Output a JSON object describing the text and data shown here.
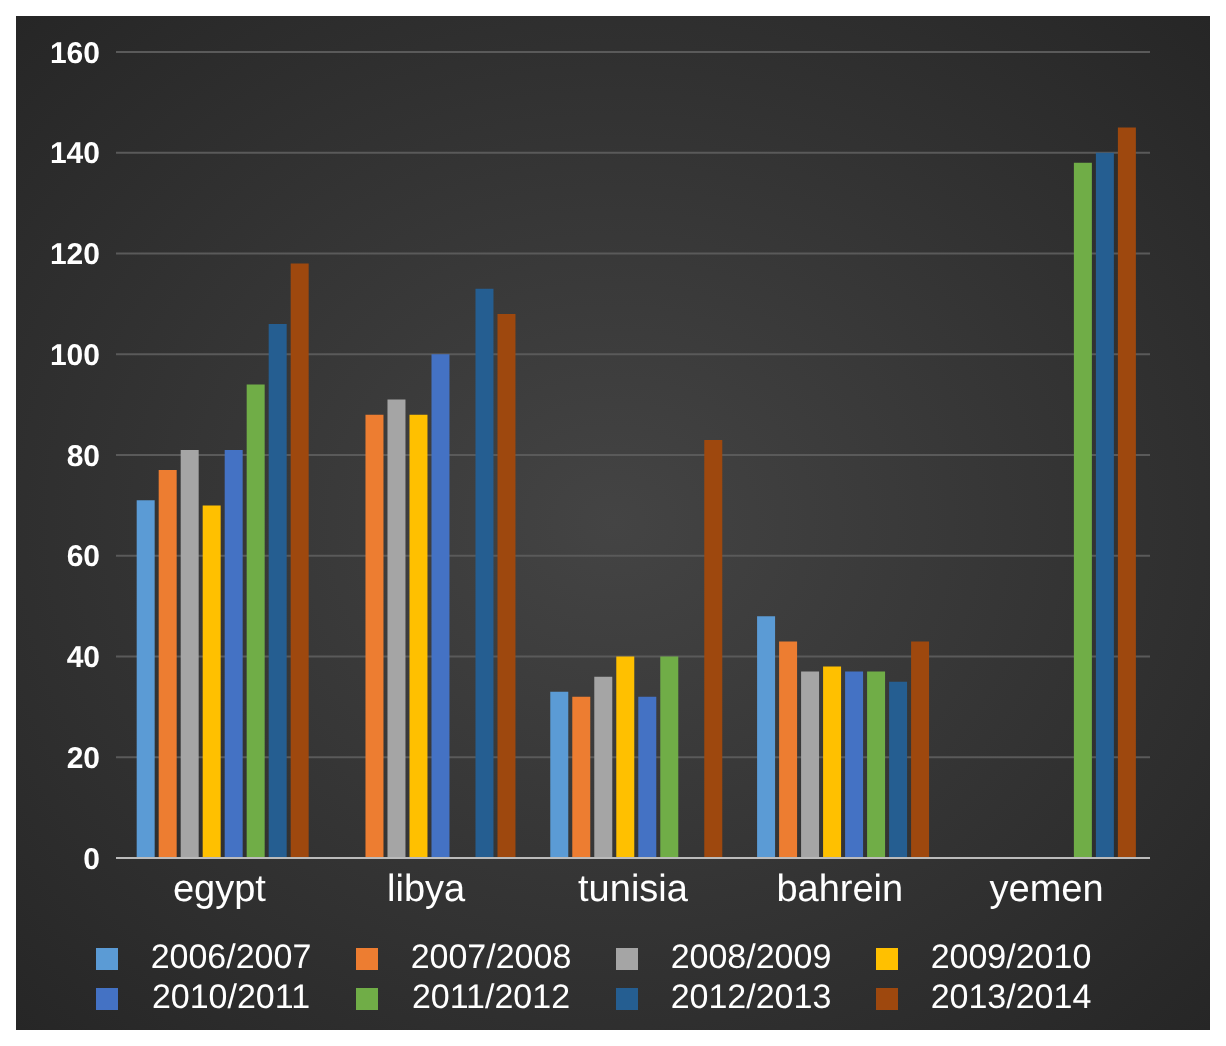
{
  "chart_data": {
    "type": "bar",
    "categories": [
      "egypt",
      "libya",
      "tunisia",
      "bahrein",
      "yemen"
    ],
    "series": [
      {
        "name": "2006/2007",
        "color": "#5b9bd5",
        "values": [
          71,
          null,
          33,
          48,
          null
        ]
      },
      {
        "name": "2007/2008",
        "color": "#ed7d31",
        "values": [
          77,
          88,
          32,
          43,
          null
        ]
      },
      {
        "name": "2008/2009",
        "color": "#a5a5a5",
        "values": [
          81,
          91,
          36,
          37,
          null
        ]
      },
      {
        "name": "2009/2010",
        "color": "#ffc000",
        "values": [
          70,
          88,
          40,
          38,
          null
        ]
      },
      {
        "name": "2010/2011",
        "color": "#4472c4",
        "values": [
          81,
          100,
          32,
          37,
          null
        ]
      },
      {
        "name": "2011/2012",
        "color": "#70ad47",
        "values": [
          94,
          null,
          40,
          37,
          138
        ]
      },
      {
        "name": "2012/2013",
        "color": "#255e91",
        "values": [
          106,
          113,
          null,
          35,
          140
        ]
      },
      {
        "name": "2013/2014",
        "color": "#9e480e",
        "values": [
          118,
          108,
          83,
          43,
          145
        ]
      }
    ],
    "ylim": [
      0,
      160
    ],
    "yticks": [
      0,
      20,
      40,
      60,
      80,
      100,
      120,
      140,
      160
    ],
    "grid": "y",
    "legend": "bottom"
  }
}
